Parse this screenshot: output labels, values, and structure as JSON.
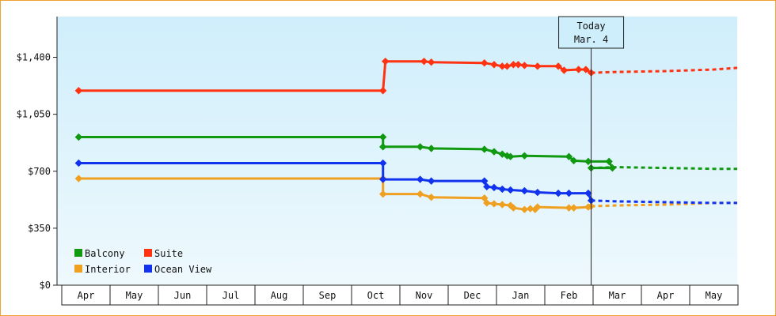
{
  "chart_data": {
    "type": "line",
    "y_tick_labels": [
      "$0",
      "$350",
      "$700",
      "$1,050",
      "$1,400"
    ],
    "y_ticks": [
      0,
      350,
      700,
      1050,
      1400
    ],
    "ylim": [
      0,
      1650
    ],
    "x_months": [
      "Apr",
      "May",
      "Jun",
      "Jul",
      "Aug",
      "Sep",
      "Oct",
      "Nov",
      "Dec",
      "Jan",
      "Feb",
      "Mar",
      "Apr",
      "May"
    ],
    "xlim": [
      -0.15,
      13.85
    ],
    "today": {
      "line1": "Today",
      "line2": "Mar. 4",
      "x": 10.46
    },
    "legend": [
      {
        "name": "Balcony",
        "color": "#119911"
      },
      {
        "name": "Suite",
        "color": "#ff3311"
      },
      {
        "name": "Interior",
        "color": "#f0a020"
      },
      {
        "name": "Ocean View",
        "color": "#1133ee"
      }
    ],
    "series": [
      {
        "name": "Balcony",
        "color": "#119911",
        "points": [
          [
            -0.15,
            910
          ],
          [
            6.15,
            910
          ],
          [
            6.15,
            850
          ],
          [
            6.92,
            850
          ],
          [
            7.15,
            840
          ],
          [
            8.25,
            835
          ],
          [
            8.45,
            820
          ],
          [
            8.62,
            805
          ],
          [
            8.72,
            795
          ],
          [
            8.79,
            790
          ],
          [
            9.08,
            795
          ],
          [
            10.0,
            790
          ],
          [
            10.1,
            765
          ],
          [
            10.4,
            760
          ],
          [
            10.83,
            760
          ],
          [
            10.9,
            720
          ],
          [
            10.46,
            720
          ]
        ],
        "forecast": [
          [
            10.46,
            720
          ],
          [
            11.0,
            725
          ],
          [
            12.0,
            720
          ],
          [
            13.0,
            715
          ],
          [
            13.85,
            715
          ]
        ]
      },
      {
        "name": "Suite",
        "color": "#ff3311",
        "points": [
          [
            -0.15,
            1195
          ],
          [
            6.15,
            1195
          ],
          [
            6.2,
            1375
          ],
          [
            7.0,
            1375
          ],
          [
            7.15,
            1370
          ],
          [
            8.25,
            1365
          ],
          [
            8.45,
            1355
          ],
          [
            8.62,
            1345
          ],
          [
            8.72,
            1345
          ],
          [
            8.85,
            1355
          ],
          [
            8.95,
            1355
          ],
          [
            9.08,
            1350
          ],
          [
            9.35,
            1345
          ],
          [
            9.78,
            1345
          ],
          [
            9.9,
            1320
          ],
          [
            10.2,
            1325
          ],
          [
            10.35,
            1325
          ],
          [
            10.46,
            1305
          ]
        ],
        "forecast": [
          [
            10.46,
            1305
          ],
          [
            11.0,
            1310
          ],
          [
            12.0,
            1315
          ],
          [
            13.0,
            1325
          ],
          [
            13.85,
            1335
          ]
        ]
      },
      {
        "name": "Interior",
        "color": "#f0a020",
        "points": [
          [
            -0.15,
            655
          ],
          [
            6.15,
            655
          ],
          [
            6.15,
            560
          ],
          [
            6.92,
            560
          ],
          [
            7.15,
            540
          ],
          [
            8.25,
            535
          ],
          [
            8.3,
            505
          ],
          [
            8.45,
            500
          ],
          [
            8.62,
            495
          ],
          [
            8.79,
            490
          ],
          [
            8.85,
            475
          ],
          [
            9.08,
            465
          ],
          [
            9.2,
            470
          ],
          [
            9.3,
            465
          ],
          [
            9.35,
            480
          ],
          [
            10.0,
            475
          ],
          [
            10.1,
            475
          ],
          [
            10.4,
            480
          ],
          [
            10.46,
            485
          ]
        ],
        "forecast": [
          [
            10.46,
            485
          ],
          [
            11.0,
            490
          ],
          [
            12.0,
            495
          ],
          [
            12.5,
            500
          ],
          [
            13.0,
            505
          ],
          [
            13.85,
            505
          ]
        ]
      },
      {
        "name": "Ocean View",
        "color": "#1133ee",
        "points": [
          [
            -0.15,
            750
          ],
          [
            6.15,
            750
          ],
          [
            6.15,
            650
          ],
          [
            6.92,
            650
          ],
          [
            7.15,
            640
          ],
          [
            8.25,
            640
          ],
          [
            8.3,
            605
          ],
          [
            8.45,
            600
          ],
          [
            8.62,
            590
          ],
          [
            8.79,
            585
          ],
          [
            9.08,
            580
          ],
          [
            9.35,
            570
          ],
          [
            9.78,
            565
          ],
          [
            10.0,
            565
          ],
          [
            10.4,
            565
          ],
          [
            10.46,
            520
          ]
        ],
        "forecast": [
          [
            10.46,
            520
          ],
          [
            11.0,
            515
          ],
          [
            12.0,
            510
          ],
          [
            13.0,
            505
          ],
          [
            13.85,
            505
          ]
        ]
      }
    ]
  }
}
